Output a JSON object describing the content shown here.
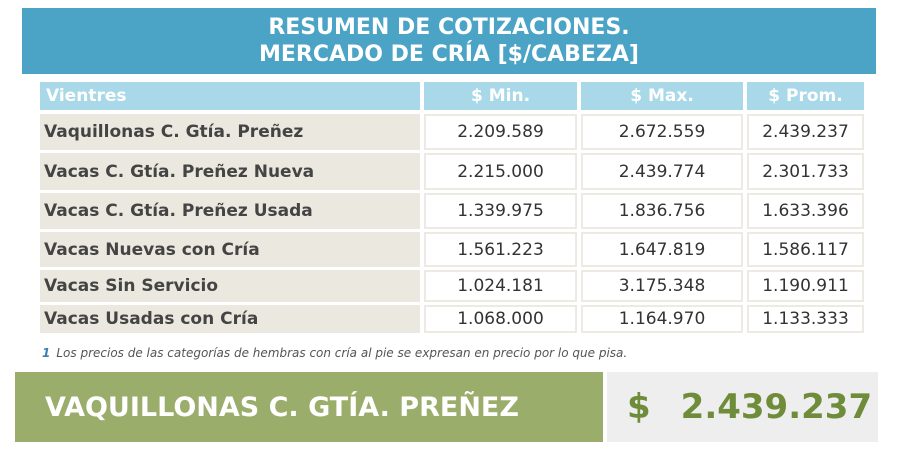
{
  "header": {
    "title_lines": [
      "RESUMEN DE COTIZACIONES.",
      "MERCADO DE CRÍA [$/CABEZA]"
    ]
  },
  "table": {
    "columns": [
      "Vientres",
      "$ Min.",
      "$ Max.",
      "$ Prom."
    ],
    "rows": [
      [
        "Vaquillonas C. Gtía. Preñez",
        "2.209.589",
        "2.672.559",
        "2.439.237"
      ],
      [
        "Vacas C. Gtía. Preñez Nueva",
        "2.215.000",
        "2.439.774",
        "2.301.733"
      ],
      [
        "Vacas C. Gtía. Preñez Usada",
        "1.339.975",
        "1.836.756",
        "1.633.396"
      ],
      [
        "Vacas Nuevas con Cría",
        "1.561.223",
        "1.647.819",
        "1.586.117"
      ],
      [
        "Vacas Sin Servicio",
        "1.024.181",
        "3.175.348",
        "1.190.911"
      ],
      [
        "Vacas Usadas con Cría",
        "1.068.000",
        "1.164.970",
        "1.133.333"
      ]
    ]
  },
  "footnote": {
    "marker": "1",
    "text": "Los precios de las categorías de hembras con cría al pie se expresan en precio por lo que pisa."
  },
  "highlight": {
    "label": "VAQUILLONAS C. GTÍA. PREÑEZ",
    "currency": "$",
    "value": "2.439.237"
  }
}
